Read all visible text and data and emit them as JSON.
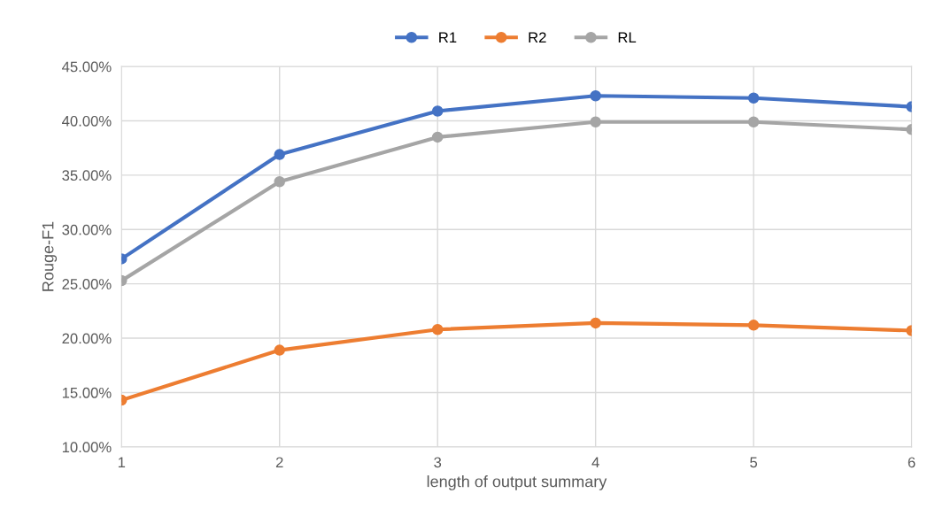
{
  "chart_data": {
    "type": "line",
    "xlabel": "length of output summary",
    "ylabel": "Rouge-F1",
    "x": [
      1,
      2,
      3,
      4,
      5,
      6
    ],
    "series": [
      {
        "name": "R1",
        "color": "#4472c4",
        "values": [
          27.3,
          36.9,
          40.9,
          42.3,
          42.1,
          41.3
        ]
      },
      {
        "name": "R2",
        "color": "#ed7d31",
        "values": [
          14.3,
          18.9,
          20.8,
          21.4,
          21.2,
          20.7
        ]
      },
      {
        "name": "RL",
        "color": "#a5a5a5",
        "values": [
          25.3,
          34.4,
          38.5,
          39.9,
          39.9,
          39.2
        ]
      }
    ],
    "xlim": [
      1,
      6
    ],
    "xticks": [
      1,
      2,
      3,
      4,
      5,
      6
    ],
    "ylim": [
      10,
      45
    ],
    "yticks": [
      {
        "value": 10,
        "label": "10.00%"
      },
      {
        "value": 15,
        "label": "15.00%"
      },
      {
        "value": 20,
        "label": "20.00%"
      },
      {
        "value": 25,
        "label": "25.00%"
      },
      {
        "value": 30,
        "label": "30.00%"
      },
      {
        "value": 35,
        "label": "35.00%"
      },
      {
        "value": 40,
        "label": "40.00%"
      },
      {
        "value": 45,
        "label": "45.00%"
      }
    ],
    "grid": true,
    "legend": "top",
    "marker": "circle",
    "line_style": "solid"
  }
}
